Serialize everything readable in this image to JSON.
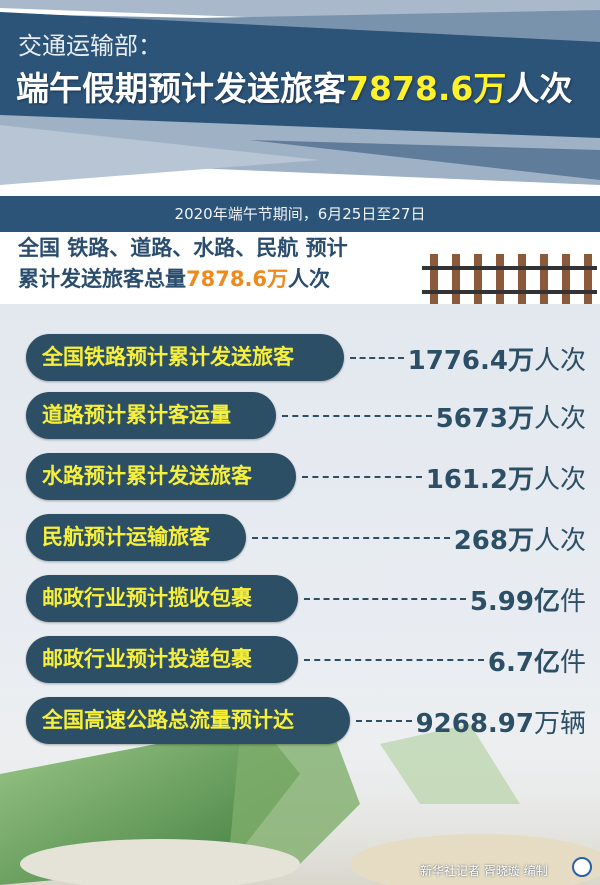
{
  "header": {
    "subtitle": "交通运输部：",
    "title_prefix": "端午假期预计发送旅客",
    "title_highlight": "7878.6万",
    "title_suffix": "人次"
  },
  "date_bar": "2020年端午节期间，6月25日至27日",
  "summary": {
    "line1": "全国 铁路、道路、水路、民航 预计",
    "line2_prefix": "累计发送旅客总量",
    "line2_highlight": "7878.6万",
    "line2_suffix": "人次"
  },
  "items": [
    {
      "label": "全国铁路预计累计发送旅客",
      "value": "1776.4万",
      "unit": "人次"
    },
    {
      "label": "道路预计累计客运量",
      "value": "5673万",
      "unit": "人次"
    },
    {
      "label": "水路预计累计发送旅客",
      "value": "161.2万",
      "unit": "人次"
    },
    {
      "label": "民航预计运输旅客",
      "value": "268万",
      "unit": "人次"
    },
    {
      "label": "邮政行业预计揽收包裹",
      "value": "5.99亿",
      "unit": "件"
    },
    {
      "label": "邮政行业预计投递包裹",
      "value": "6.7亿",
      "unit": "件"
    },
    {
      "label": "全国高速公路总流量预计达",
      "value": "9268.97",
      "unit": "万辆"
    }
  ],
  "credit": "新华社记者 胥晓璇 编制",
  "colors": {
    "navy": "#2c5478",
    "pill": "#2c4f66",
    "yellow": "#f7f03a",
    "orange": "#f08a1c"
  }
}
